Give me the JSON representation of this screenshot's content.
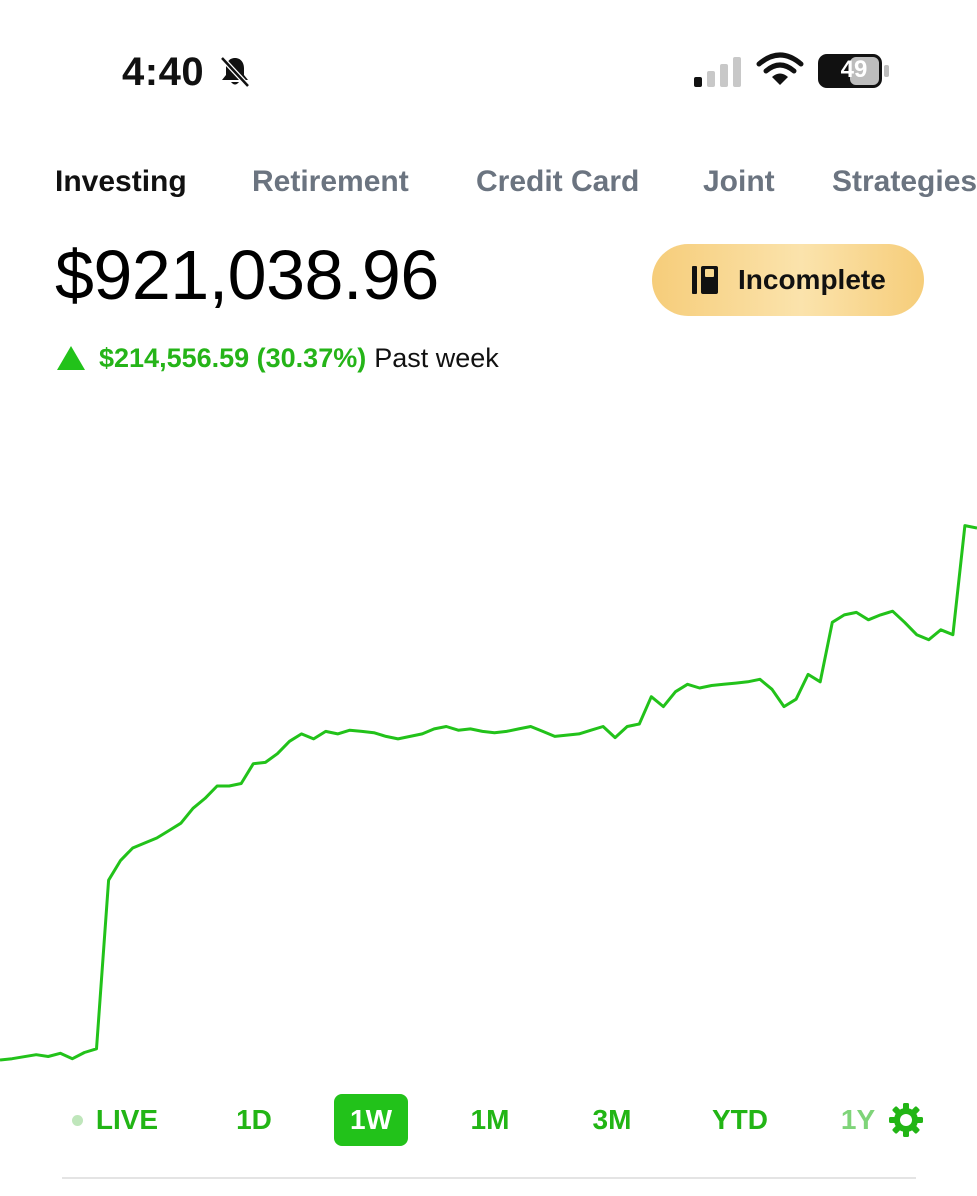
{
  "status_bar": {
    "time": "4:40",
    "battery": "49",
    "icons": [
      "bell-slash-icon",
      "cellular-signal-icon",
      "wifi-icon",
      "battery-icon"
    ]
  },
  "tabs": [
    {
      "label": "Investing",
      "active": true
    },
    {
      "label": "Retirement",
      "active": false
    },
    {
      "label": "Credit Card",
      "active": false
    },
    {
      "label": "Joint",
      "active": false
    },
    {
      "label": "Strategies",
      "active": false
    }
  ],
  "account": {
    "balance": "$921,038.96",
    "change_value": "$214,556.59 (30.37%)",
    "change_period": "Past week",
    "status_button": {
      "label": "Incomplete",
      "icon": "phone-book-icon"
    }
  },
  "colors": {
    "gain": "#22c21a",
    "button_bg": "#f6cd7a",
    "tab_inactive": "#6b7480"
  },
  "chart_data": {
    "type": "line",
    "title": "",
    "xlabel": "",
    "ylabel": "",
    "grid": false,
    "ylim": [
      706482.37,
      921038.96
    ],
    "series": [
      {
        "values": [
          706482.37,
          707000,
          707800,
          708600,
          707900,
          709200,
          707000,
          709500,
          711000,
          779000,
          787000,
          792000,
          794000,
          796000,
          799000,
          802000,
          808000,
          812000,
          817000,
          817000,
          818000,
          826000,
          826500,
          830000,
          835000,
          838000,
          836000,
          839000,
          838000,
          839500,
          839000,
          838500,
          837000,
          836000,
          837000,
          838000,
          840000,
          841000,
          839500,
          840000,
          839000,
          838500,
          839000,
          840000,
          841000,
          839000,
          837000,
          837500,
          838000,
          839500,
          841000,
          836500,
          841000,
          842000,
          853000,
          849000,
          855000,
          858000,
          856500,
          857500,
          858000,
          858500,
          859000,
          860000,
          856000,
          849000,
          852000,
          862000,
          859000,
          883000,
          886000,
          887000,
          884000,
          886000,
          887500,
          883000,
          878000,
          876000,
          880000,
          878000,
          922000,
          921038.96
        ]
      }
    ],
    "range_options": [
      "LIVE",
      "1D",
      "1W",
      "1M",
      "3M",
      "YTD",
      "1Y"
    ],
    "selected_range": "1W",
    "settings_icon": "gear-icon"
  }
}
